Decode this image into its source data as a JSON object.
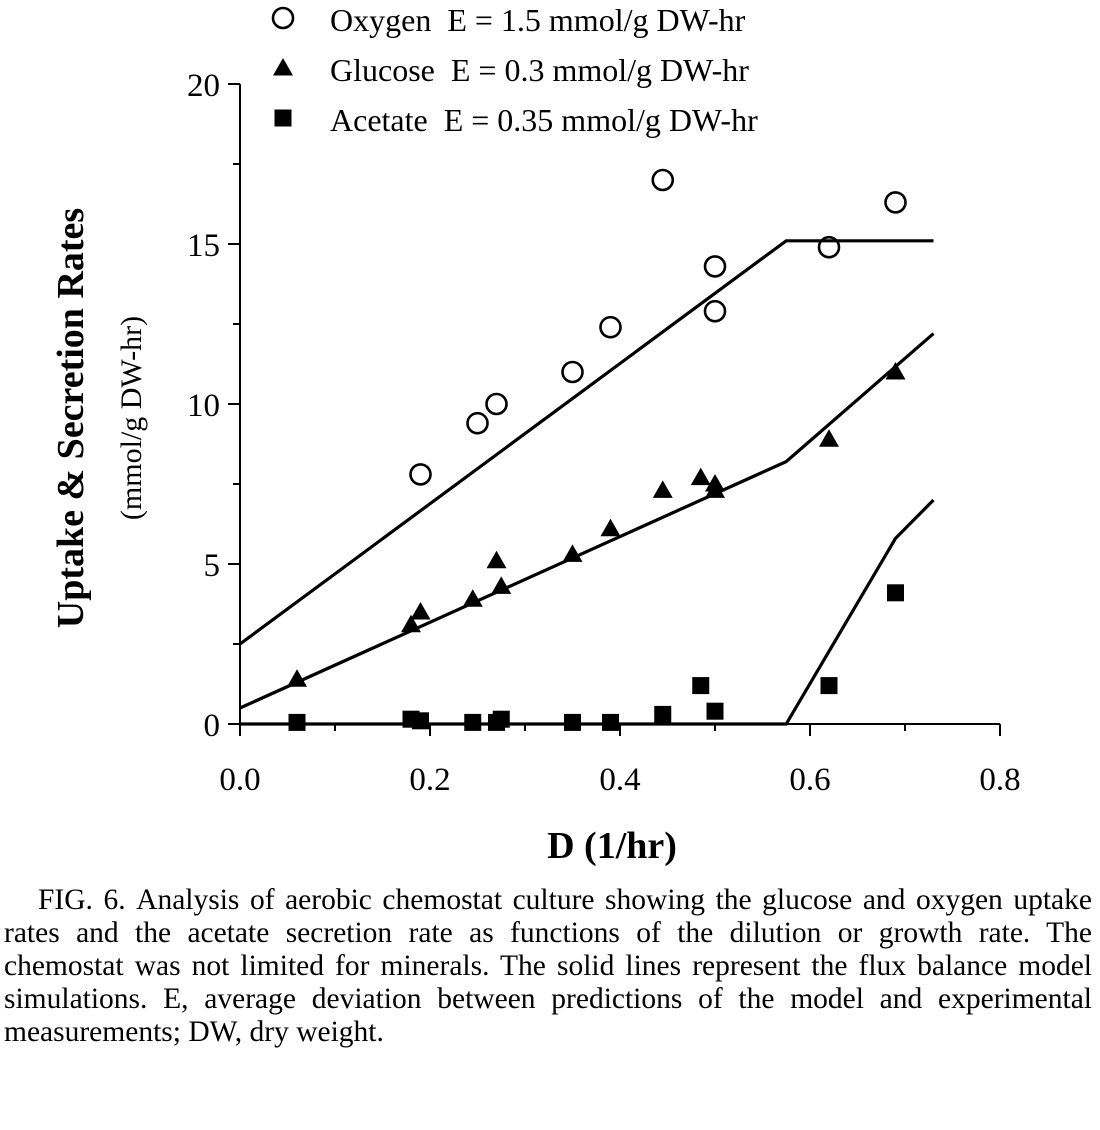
{
  "chart_data": {
    "type": "scatter",
    "xlabel": "D (1/hr)",
    "ylabel": "Uptake & Secretion Rates",
    "ylabel_units": "(mmol/g DW-hr)",
    "xlim": [
      0.0,
      0.8
    ],
    "ylim": [
      0,
      20
    ],
    "x_ticks": [
      "0.0",
      "0.2",
      "0.4",
      "0.6",
      "0.8"
    ],
    "y_ticks": [
      "0",
      "5",
      "10",
      "15",
      "20"
    ],
    "grid": false,
    "legend_position": "top-center",
    "series": [
      {
        "name": "Oxygen",
        "deviation_label": "E = 1.5 mmol/g DW-hr",
        "marker": "open-circle",
        "points": [
          [
            0.19,
            7.8
          ],
          [
            0.25,
            9.4
          ],
          [
            0.27,
            10.0
          ],
          [
            0.35,
            11.0
          ],
          [
            0.39,
            12.4
          ],
          [
            0.445,
            17.0
          ],
          [
            0.5,
            14.3
          ],
          [
            0.5,
            12.9
          ],
          [
            0.62,
            14.9
          ],
          [
            0.69,
            16.3
          ]
        ],
        "model_line": [
          [
            0.0,
            2.5
          ],
          [
            0.575,
            15.1
          ],
          [
            0.73,
            15.1
          ]
        ]
      },
      {
        "name": "Glucose",
        "deviation_label": "E = 0.3 mmol/g DW-hr",
        "marker": "filled-triangle",
        "points": [
          [
            0.06,
            1.4
          ],
          [
            0.18,
            3.1
          ],
          [
            0.19,
            3.5
          ],
          [
            0.245,
            3.9
          ],
          [
            0.27,
            5.1
          ],
          [
            0.275,
            4.3
          ],
          [
            0.35,
            5.3
          ],
          [
            0.39,
            6.1
          ],
          [
            0.445,
            7.3
          ],
          [
            0.485,
            7.7
          ],
          [
            0.5,
            7.5
          ],
          [
            0.5,
            7.3
          ],
          [
            0.62,
            8.9
          ],
          [
            0.69,
            11.0
          ]
        ],
        "model_line": [
          [
            0.0,
            0.5
          ],
          [
            0.575,
            8.2
          ],
          [
            0.73,
            12.2
          ]
        ]
      },
      {
        "name": "Acetate",
        "deviation_label": "E = 0.35 mmol/g DW-hr",
        "marker": "filled-square",
        "points": [
          [
            0.06,
            0.05
          ],
          [
            0.18,
            0.15
          ],
          [
            0.19,
            0.1
          ],
          [
            0.245,
            0.05
          ],
          [
            0.27,
            0.05
          ],
          [
            0.275,
            0.15
          ],
          [
            0.35,
            0.05
          ],
          [
            0.39,
            0.05
          ],
          [
            0.445,
            0.3
          ],
          [
            0.485,
            1.2
          ],
          [
            0.5,
            0.4
          ],
          [
            0.62,
            1.2
          ],
          [
            0.69,
            4.1
          ]
        ],
        "model_line": [
          [
            0.0,
            0.0
          ],
          [
            0.575,
            0.0
          ],
          [
            0.69,
            5.8
          ],
          [
            0.73,
            7.0
          ]
        ]
      }
    ]
  },
  "caption": {
    "label": "FIG. 6.",
    "text": "Analysis of aerobic chemostat culture showing the glucose and oxygen uptake rates and the acetate secretion rate as functions of the dilution or growth rate. The chemostat was not limited for minerals. The solid lines represent the flux balance model simulations. E, average deviation between predictions of the model and experimental measurements; DW, dry weight."
  }
}
